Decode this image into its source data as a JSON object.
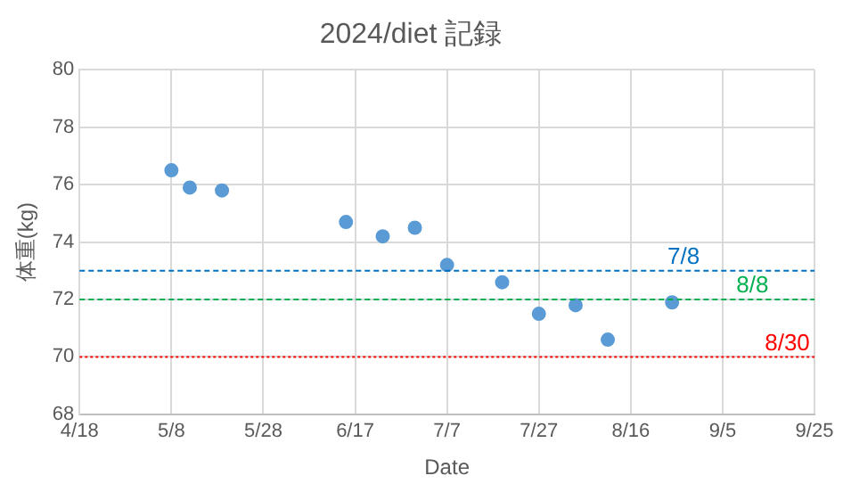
{
  "chart_data": {
    "type": "scatter",
    "title": "2024/diet 記録",
    "xlabel": "Date",
    "ylabel": "体重(kg)",
    "x": [
      "2024-05-08",
      "2024-05-12",
      "2024-05-19",
      "2024-06-15",
      "2024-06-23",
      "2024-06-30",
      "2024-07-07",
      "2024-07-19",
      "2024-07-27",
      "2024-08-04",
      "2024-08-11",
      "2024-08-25"
    ],
    "series": [
      {
        "color": "#5b9bd5",
        "values": [
          76.5,
          75.9,
          75.8,
          74.7,
          74.2,
          74.5,
          73.2,
          72.6,
          71.5,
          71.8,
          70.6,
          71.9
        ]
      }
    ],
    "xlim": [
      "2024-04-18",
      "2024-09-25"
    ],
    "xticks": [
      {
        "value": "2024-04-18",
        "label": "4/18"
      },
      {
        "value": "2024-05-08",
        "label": "5/8"
      },
      {
        "value": "2024-05-28",
        "label": "5/28"
      },
      {
        "value": "2024-06-17",
        "label": "6/17"
      },
      {
        "value": "2024-07-07",
        "label": "7/7"
      },
      {
        "value": "2024-07-27",
        "label": "7/27"
      },
      {
        "value": "2024-08-16",
        "label": "8/16"
      },
      {
        "value": "2024-09-05",
        "label": "9/5"
      },
      {
        "value": "2024-09-25",
        "label": "9/25"
      }
    ],
    "ylim": [
      68,
      80
    ],
    "yticks": [
      68,
      70,
      72,
      74,
      76,
      78,
      80
    ],
    "ref_lines": [
      {
        "axis": "y",
        "value": 73,
        "color": "#0070c0",
        "line_style": "dashed"
      },
      {
        "axis": "y",
        "value": 72,
        "color": "#00b050",
        "line_style": "dashed"
      },
      {
        "axis": "y",
        "value": 70,
        "color": "#ff0000",
        "line_style": "dotted"
      }
    ],
    "annotations": [
      {
        "text": "7/8",
        "x": "2024-08-31",
        "y": 73
      },
      {
        "text": "8/8",
        "x": "2024-09-15",
        "y": 72
      },
      {
        "text": "8/30",
        "x": "2024-09-24",
        "y": 70
      }
    ],
    "grid": true,
    "legend": false,
    "marker": "circle"
  }
}
